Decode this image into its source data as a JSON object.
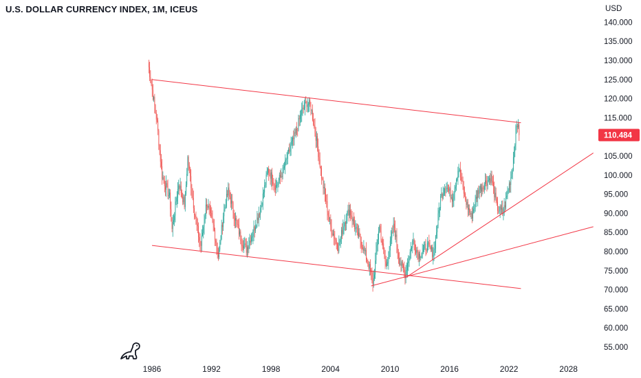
{
  "title": "U.S. DOLLAR CURRENCY INDEX, 1M, ICEUS",
  "colors": {
    "up": "#26a69a",
    "down": "#ef5350",
    "trendline": "#f23645",
    "badge": "#f23645",
    "axis_text": "#131722"
  },
  "icons": {
    "logo": "dinosaur-logo-icon"
  },
  "chart_data": {
    "type": "candlestick",
    "title": "U.S. DOLLAR CURRENCY INDEX, 1M, ICEUS",
    "currency_label": "USD",
    "last_price": "110.484",
    "ylim": [
      52.5,
      143
    ],
    "xlim": [
      1984.7,
      2030.5
    ],
    "y_ticks": [
      "140.000",
      "135.000",
      "130.000",
      "125.000",
      "120.000",
      "115.000",
      "110.000",
      "105.000",
      "100.000",
      "95.000",
      "90.000",
      "85.000",
      "80.000",
      "75.000",
      "70.000",
      "65.000",
      "60.000",
      "55.000"
    ],
    "x_ticks": [
      "1986",
      "1992",
      "1998",
      "2004",
      "2010",
      "2016",
      "2022",
      "2028"
    ],
    "grid": false,
    "anchors": [
      [
        1985.6,
        129.5
      ],
      [
        1986.5,
        114
      ],
      [
        1987.0,
        100
      ],
      [
        1987.8,
        94
      ],
      [
        1988.0,
        85.5
      ],
      [
        1988.7,
        98
      ],
      [
        1989.3,
        92
      ],
      [
        1989.6,
        104.5
      ],
      [
        1990.3,
        90
      ],
      [
        1990.9,
        81
      ],
      [
        1991.5,
        93
      ],
      [
        1992.2,
        86.5
      ],
      [
        1992.7,
        78.5
      ],
      [
        1993.2,
        90
      ],
      [
        1993.7,
        96
      ],
      [
        1994.3,
        89.5
      ],
      [
        1995.0,
        83
      ],
      [
        1995.5,
        80.5
      ],
      [
        1996.3,
        86
      ],
      [
        1997.0,
        92
      ],
      [
        1997.7,
        101.5
      ],
      [
        1998.5,
        97
      ],
      [
        1999.2,
        101
      ],
      [
        1999.8,
        106
      ],
      [
        2000.5,
        111
      ],
      [
        2001.0,
        116
      ],
      [
        2001.6,
        119
      ],
      [
        2002.0,
        118
      ],
      [
        2002.6,
        109
      ],
      [
        2003.2,
        98
      ],
      [
        2004.0,
        86.5
      ],
      [
        2004.8,
        81
      ],
      [
        2005.3,
        87
      ],
      [
        2005.9,
        91
      ],
      [
        2006.5,
        86
      ],
      [
        2007.3,
        81
      ],
      [
        2007.9,
        76
      ],
      [
        2008.3,
        71.5
      ],
      [
        2008.9,
        87
      ],
      [
        2009.6,
        76
      ],
      [
        2010.4,
        87
      ],
      [
        2010.9,
        78
      ],
      [
        2011.5,
        74
      ],
      [
        2012.3,
        83
      ],
      [
        2012.9,
        79
      ],
      [
        2013.7,
        81.5
      ],
      [
        2014.4,
        79.5
      ],
      [
        2015.1,
        94
      ],
      [
        2015.6,
        97.5
      ],
      [
        2016.3,
        94
      ],
      [
        2016.9,
        102
      ],
      [
        2017.6,
        93.5
      ],
      [
        2018.2,
        89
      ],
      [
        2018.9,
        96
      ],
      [
        2019.6,
        98
      ],
      [
        2020.2,
        99.5
      ],
      [
        2020.8,
        91.5
      ],
      [
        2021.4,
        90
      ],
      [
        2021.9,
        96
      ],
      [
        2022.3,
        101
      ],
      [
        2022.7,
        112
      ],
      [
        2022.95,
        114
      ],
      [
        2023.0,
        110.484
      ]
    ],
    "trendlines": [
      {
        "x": [
          1986.0,
          2023.2
        ],
        "y": [
          125.0,
          113.7
        ]
      },
      {
        "x": [
          1986.0,
          2023.2
        ],
        "y": [
          81.6,
          70.3
        ]
      },
      {
        "x": [
          2008.1,
          2030.5
        ],
        "y": [
          71.0,
          86.5
        ]
      },
      {
        "x": [
          2011.6,
          2030.5
        ],
        "y": [
          73.2,
          105.8
        ]
      }
    ]
  }
}
